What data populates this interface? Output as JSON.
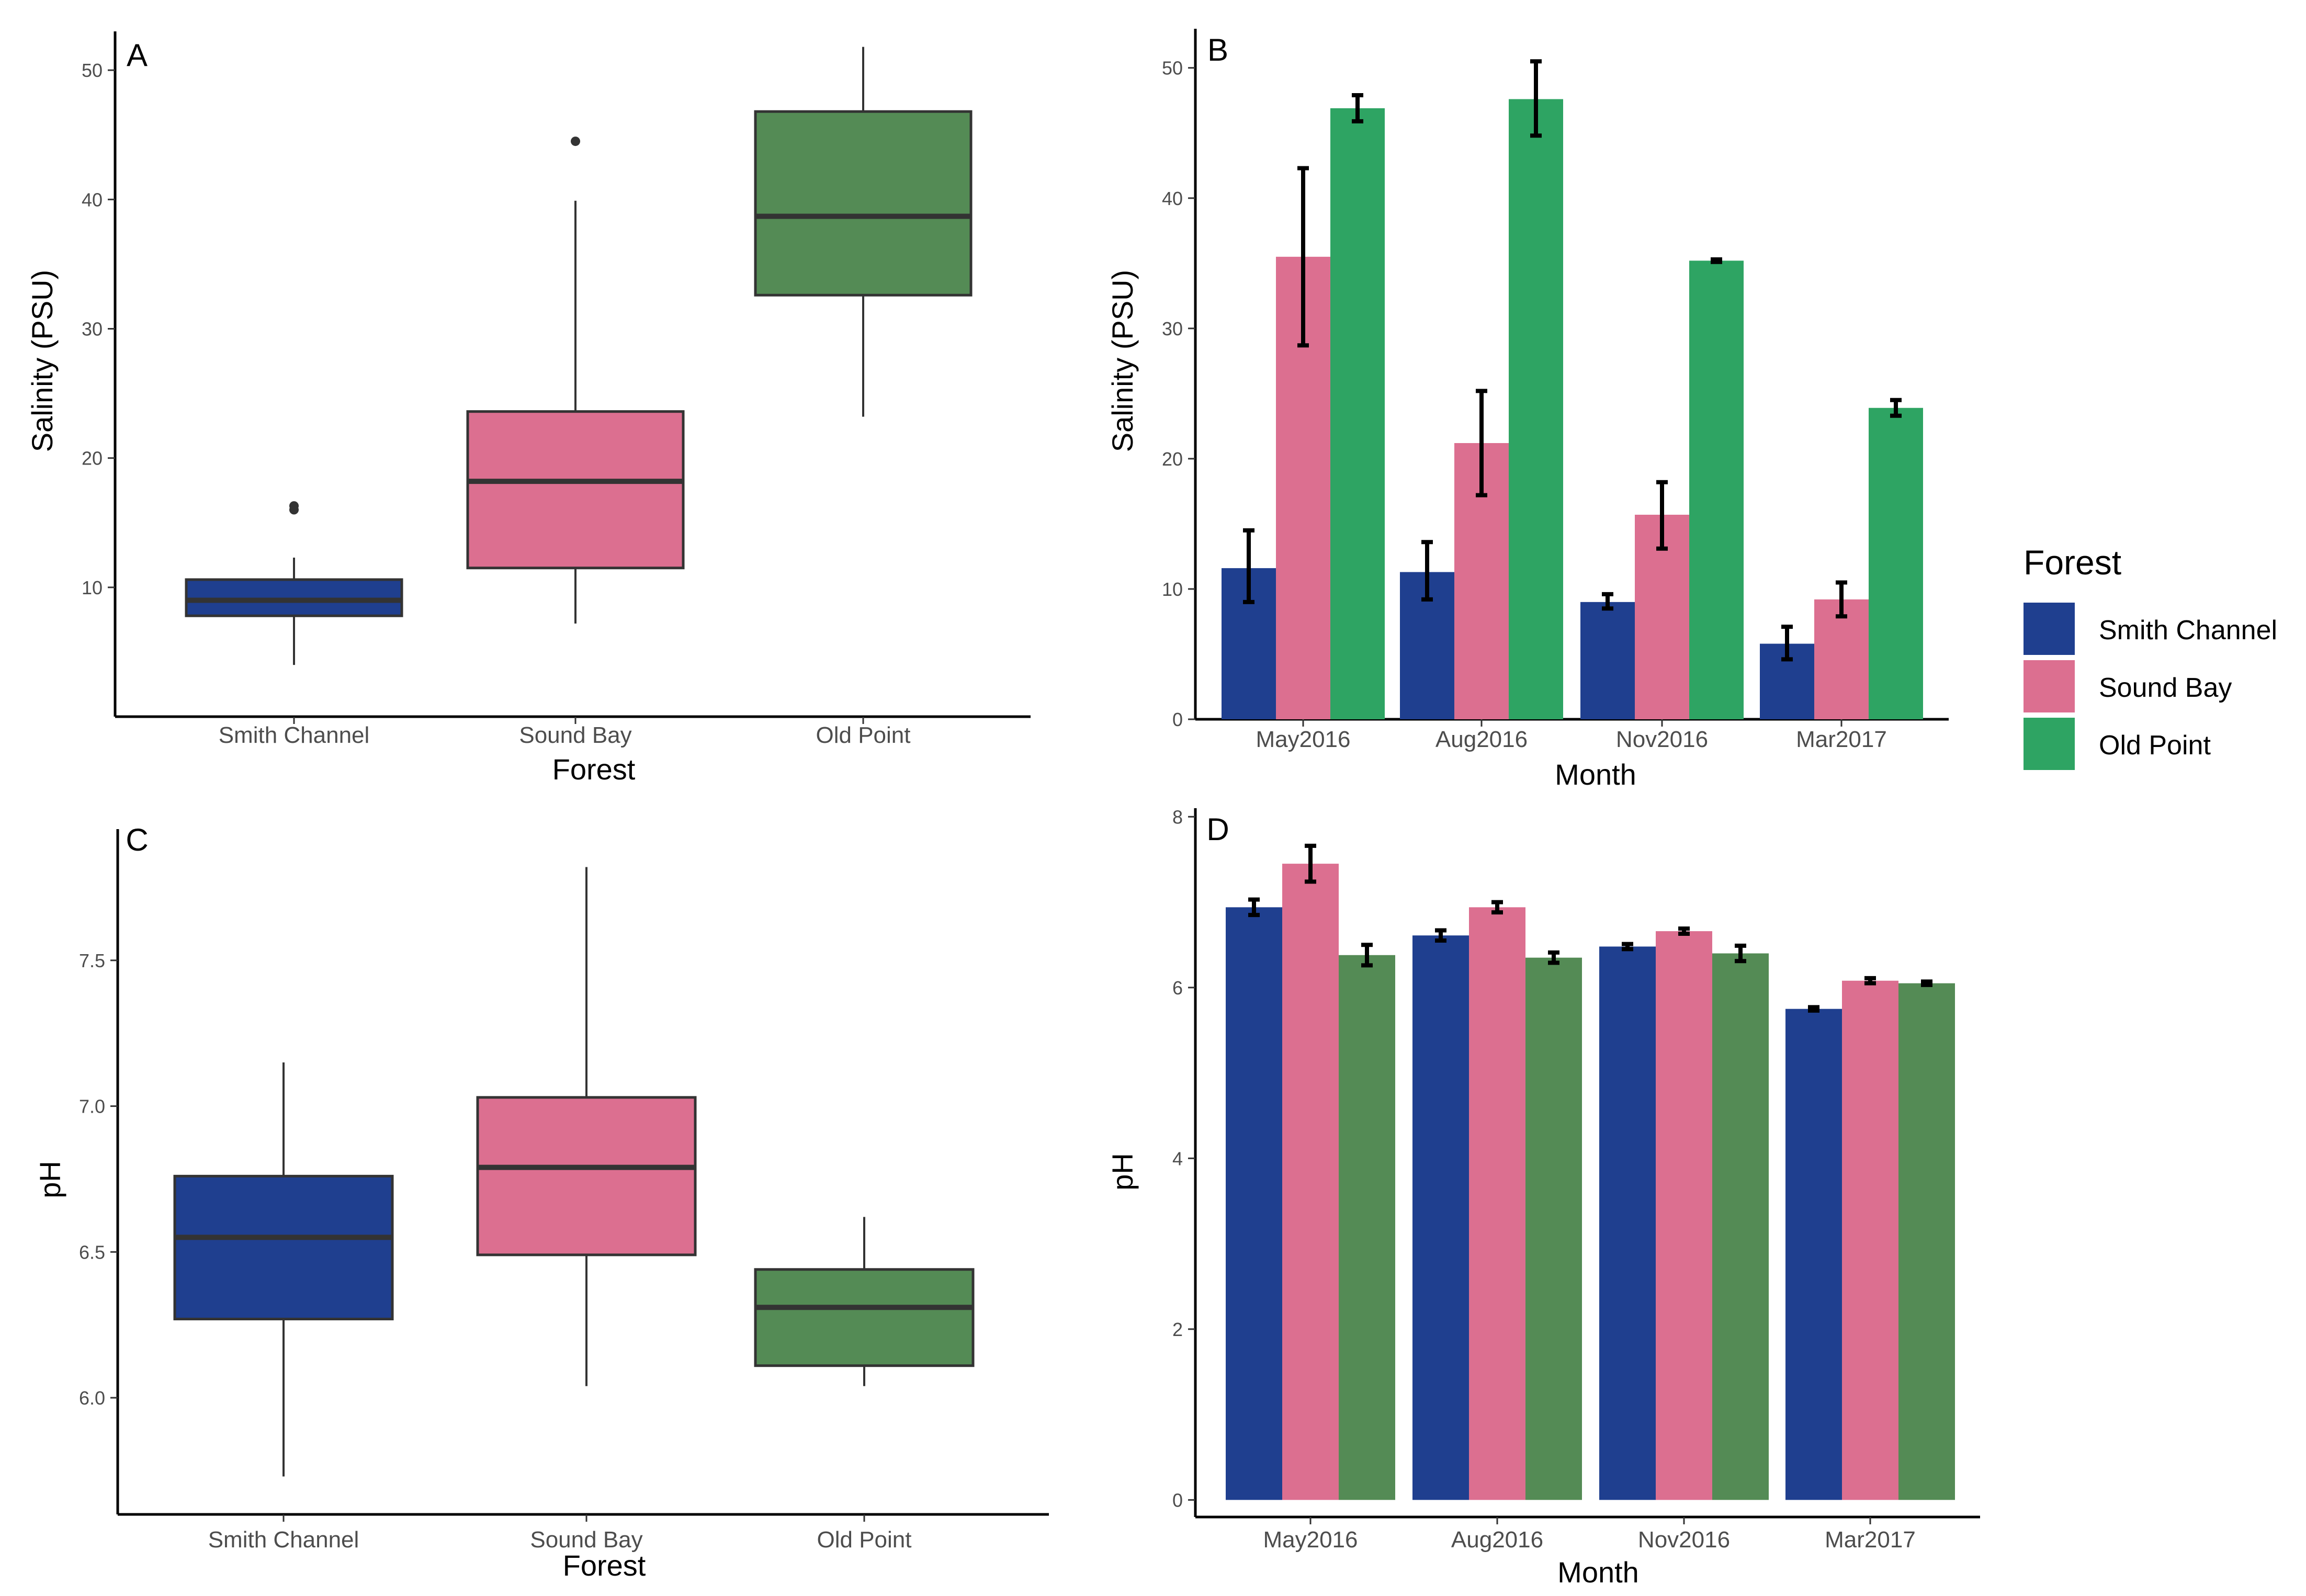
{
  "colors": {
    "smith_channel": "#1f3f8f",
    "sound_bay": "#dc6f90",
    "old_point_box": "#548b55",
    "old_point_bar_b": "#2ea463",
    "axis": "#000000",
    "line": "#333333",
    "error": "#000000"
  },
  "legend": {
    "title": "Forest",
    "items": [
      {
        "label": "Smith Channel",
        "color_key": "smith_channel"
      },
      {
        "label": "Sound Bay",
        "color_key": "sound_bay"
      },
      {
        "label": "Old Point",
        "color_key": "old_point_bar_b"
      }
    ]
  },
  "chart_data": [
    {
      "panel": "A",
      "type": "box",
      "xlabel": "Forest",
      "ylabel": "Salinity (PSU)",
      "ylim": [
        0,
        53
      ],
      "yticks": [
        10,
        20,
        30,
        40,
        50
      ],
      "categories": [
        "Smith Channel",
        "Sound Bay",
        "Old Point"
      ],
      "boxes": [
        {
          "min": 4,
          "q1": 7.8,
          "median": 9,
          "q3": 10.6,
          "max": 12.3,
          "outliers": [
            16,
            16.3
          ],
          "color_key": "smith_channel"
        },
        {
          "min": 7.2,
          "q1": 11.5,
          "median": 18.2,
          "q3": 23.6,
          "max": 39.9,
          "outliers": [
            44.5
          ],
          "color_key": "sound_bay"
        },
        {
          "min": 23.2,
          "q1": 32.6,
          "median": 38.7,
          "q3": 46.8,
          "max": 51.8,
          "outliers": [],
          "color_key": "old_point_box"
        }
      ]
    },
    {
      "panel": "B",
      "type": "bar",
      "xlabel": "Month",
      "ylabel": "Salinity (PSU)",
      "ylim": [
        0,
        53
      ],
      "yticks": [
        0,
        10,
        20,
        30,
        40,
        50
      ],
      "categories": [
        "May2016",
        "Aug2016",
        "Nov2016",
        "Mar2017"
      ],
      "series": [
        {
          "name": "Smith Channel",
          "color_key": "smith_channel",
          "values": [
            11.6,
            11.3,
            9.0,
            5.8
          ],
          "err_low": [
            9.0,
            9.2,
            8.5,
            4.6
          ],
          "err_high": [
            14.5,
            13.6,
            9.6,
            7.1
          ]
        },
        {
          "name": "Sound Bay",
          "color_key": "sound_bay",
          "values": [
            35.5,
            21.2,
            15.7,
            9.2
          ],
          "err_low": [
            28.7,
            17.2,
            13.1,
            7.9
          ],
          "err_high": [
            42.3,
            25.2,
            18.2,
            10.5
          ]
        },
        {
          "name": "Old Point",
          "color_key": "old_point_bar_b",
          "values": [
            46.9,
            47.6,
            35.2,
            23.9
          ],
          "err_low": [
            45.9,
            44.8,
            35.1,
            23.3
          ],
          "err_high": [
            47.9,
            50.5,
            35.3,
            24.5
          ]
        }
      ]
    },
    {
      "panel": "C",
      "type": "box",
      "xlabel": "Forest",
      "ylabel": "pH",
      "ylim": [
        5.6,
        7.95
      ],
      "yticks": [
        6.0,
        6.5,
        7.0,
        7.5
      ],
      "ytick_labels": [
        "6.0",
        "6.5",
        "7.0",
        "7.5"
      ],
      "categories": [
        "Smith Channel",
        "Sound Bay",
        "Old Point"
      ],
      "boxes": [
        {
          "min": 5.73,
          "q1": 6.27,
          "median": 6.55,
          "q3": 6.76,
          "max": 7.15,
          "outliers": [],
          "color_key": "smith_channel"
        },
        {
          "min": 6.04,
          "q1": 6.49,
          "median": 6.79,
          "q3": 7.03,
          "max": 7.82,
          "outliers": [],
          "color_key": "sound_bay"
        },
        {
          "min": 6.04,
          "q1": 6.11,
          "median": 6.31,
          "q3": 6.44,
          "max": 6.62,
          "outliers": [],
          "color_key": "old_point_box"
        }
      ]
    },
    {
      "panel": "D",
      "type": "bar",
      "xlabel": "Month",
      "ylabel": "pH",
      "ylim": [
        -0.2,
        8.1
      ],
      "yticks": [
        0,
        2,
        4,
        6,
        8
      ],
      "categories": [
        "May2016",
        "Aug2016",
        "Nov2016",
        "Mar2017"
      ],
      "series": [
        {
          "name": "Smith Channel",
          "color_key": "smith_channel",
          "values": [
            6.94,
            6.61,
            6.48,
            5.75
          ],
          "err_low": [
            6.85,
            6.55,
            6.45,
            5.73
          ],
          "err_high": [
            7.03,
            6.67,
            6.51,
            5.77
          ]
        },
        {
          "name": "Sound Bay",
          "color_key": "sound_bay",
          "values": [
            7.45,
            6.94,
            6.66,
            6.08
          ],
          "err_low": [
            7.24,
            6.88,
            6.63,
            6.05
          ],
          "err_high": [
            7.66,
            7.0,
            6.69,
            6.11
          ]
        },
        {
          "name": "Old Point",
          "color_key": "old_point_box",
          "values": [
            6.38,
            6.35,
            6.4,
            6.05
          ],
          "err_low": [
            6.26,
            6.29,
            6.31,
            6.03
          ],
          "err_high": [
            6.5,
            6.41,
            6.49,
            6.07
          ]
        }
      ]
    }
  ]
}
